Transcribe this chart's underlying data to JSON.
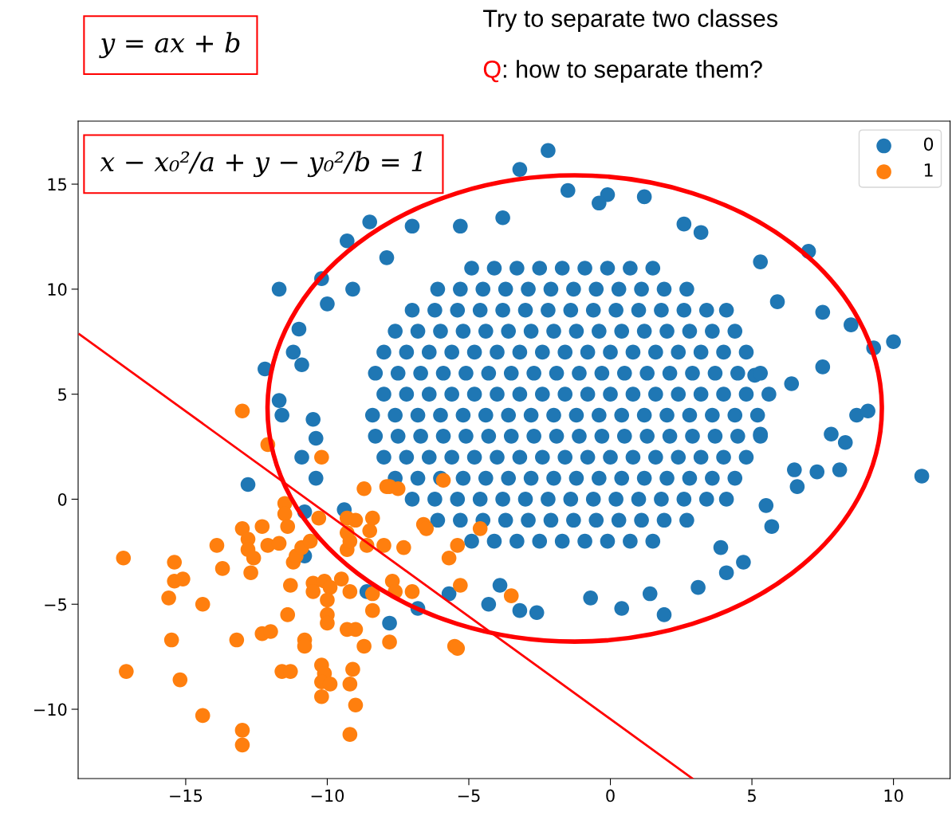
{
  "chart_data": {
    "type": "scatter",
    "annotations": [
      "y = ax + b",
      "x − x₀²/a + y − y₀²/b = 1",
      "Try to separate two classes",
      "Q: how to separate them?"
    ],
    "xlim": [
      -18.8,
      12.0
    ],
    "ylim": [
      -13.3,
      18.0
    ],
    "xticks": [
      {
        "value": -15,
        "label": "−15"
      },
      {
        "value": -10,
        "label": "−10"
      },
      {
        "value": -5,
        "label": "−5"
      },
      0,
      5,
      10
    ],
    "yticks": [
      {
        "value": -10,
        "label": "−10"
      },
      {
        "value": -5,
        "label": "−5"
      },
      0,
      5,
      10,
      15
    ],
    "grid": false,
    "legend": "top right",
    "series": [
      {
        "name": "0",
        "color": "#1f77b4",
        "marker": "circle",
        "x": [
          -12.8,
          -11.7,
          -12.2,
          -11.7,
          -11.6,
          -11.0,
          -11.2,
          -10.2,
          -9.3,
          -8.5,
          -10.8,
          -10.8,
          -10.4,
          -10.9,
          -10.4,
          -10.5,
          -9.4,
          -8.6,
          -7.8,
          -6.8,
          -5.7,
          -4.3,
          -3.2,
          -2.6,
          -3.9,
          -0.7,
          0.4,
          1.9,
          1.4,
          3.1,
          4.1,
          4.7,
          3.9,
          6.5,
          7.3,
          8.1,
          8.3,
          7.8,
          8.7,
          9.1,
          10.0,
          9.3,
          8.5,
          11.0,
          7.0,
          5.3,
          3.2,
          2.6,
          1.2,
          -0.1,
          -1.5,
          -2.2,
          -3.2,
          -0.4,
          -3.8,
          -5.3,
          -7.0,
          -7.9,
          -9.1,
          -10.0,
          5.9,
          7.5,
          7.5,
          6.4,
          5.1,
          5.3,
          6.6,
          5.5,
          5.7,
          -10.9,
          -4.9,
          -4.1,
          -3.3,
          -2.5,
          -1.7,
          -0.9,
          -0.1,
          0.7,
          1.5,
          -6.1,
          -5.3,
          -4.5,
          -3.7,
          -2.9,
          -2.1,
          -1.3,
          -0.5,
          0.3,
          1.1,
          1.9,
          2.7,
          -7.0,
          -6.2,
          -5.4,
          -4.6,
          -3.8,
          -3.0,
          -2.2,
          -1.4,
          -0.6,
          0.2,
          1.0,
          1.8,
          2.6,
          3.4,
          4.1,
          -7.6,
          -6.8,
          -6.0,
          -5.2,
          -4.4,
          -3.6,
          -2.8,
          -2.0,
          -1.2,
          -0.4,
          0.4,
          1.2,
          2.0,
          2.8,
          3.6,
          4.4,
          -8.0,
          -7.2,
          -6.4,
          -5.6,
          -4.8,
          -4.0,
          -3.2,
          -2.4,
          -1.6,
          -0.8,
          0.0,
          0.8,
          1.6,
          2.4,
          3.2,
          4.0,
          4.8,
          -8.3,
          -7.5,
          -6.7,
          -5.9,
          -5.1,
          -4.3,
          -3.5,
          -2.7,
          -1.9,
          -1.1,
          -0.3,
          0.5,
          1.3,
          2.1,
          2.9,
          3.7,
          4.5,
          5.3,
          -8.4,
          -7.6,
          -6.8,
          -6.0,
          -5.2,
          -4.4,
          -3.6,
          -2.8,
          -2.0,
          -1.2,
          -0.4,
          0.4,
          1.2,
          2.0,
          2.8,
          3.6,
          4.4,
          5.2,
          -8.0,
          -7.2,
          -6.4,
          -5.6,
          -4.8,
          -4.0,
          -3.2,
          -2.4,
          -1.6,
          -0.8,
          0.0,
          0.8,
          1.6,
          2.4,
          3.2,
          4.0,
          4.8,
          5.6,
          -8.3,
          -7.5,
          -6.7,
          -5.9,
          -5.1,
          -4.3,
          -3.5,
          -2.7,
          -1.9,
          -1.1,
          -0.3,
          0.5,
          1.3,
          2.1,
          2.9,
          3.7,
          4.5,
          5.3,
          -8.0,
          -7.2,
          -6.4,
          -5.6,
          -4.8,
          -4.0,
          -3.2,
          -2.4,
          -1.6,
          -0.8,
          0.0,
          0.8,
          1.6,
          2.4,
          3.2,
          4.0,
          4.8,
          -7.6,
          -6.8,
          -6.0,
          -5.2,
          -4.4,
          -3.6,
          -2.8,
          -2.0,
          -1.2,
          -0.4,
          0.4,
          1.2,
          2.0,
          2.8,
          3.6,
          4.4,
          -7.0,
          -6.2,
          -5.4,
          -4.6,
          -3.8,
          -3.0,
          -2.2,
          -1.4,
          -0.6,
          0.2,
          1.0,
          1.8,
          2.6,
          3.4,
          4.1,
          -6.1,
          -5.3,
          -4.5,
          -3.7,
          -2.9,
          -2.1,
          -1.3,
          -0.5,
          0.3,
          1.1,
          1.9,
          2.7,
          -4.9,
          -4.1,
          -3.3,
          -2.5,
          -1.7,
          -0.9,
          -0.1,
          0.7,
          1.5
        ],
        "values": [
          0.7,
          10.0,
          6.2,
          4.7,
          4.0,
          8.1,
          7.0,
          10.5,
          12.3,
          13.2,
          -0.6,
          -2.7,
          1.0,
          2.0,
          2.9,
          3.8,
          -0.5,
          -4.4,
          -5.9,
          -5.2,
          -4.5,
          -5.0,
          -5.3,
          -5.4,
          -4.1,
          -4.7,
          -5.2,
          -5.5,
          -4.5,
          -4.2,
          -3.5,
          -3.0,
          -2.3,
          1.4,
          1.3,
          1.4,
          2.7,
          3.1,
          4.0,
          4.2,
          7.5,
          7.2,
          8.3,
          1.1,
          11.8,
          11.3,
          12.7,
          13.1,
          14.4,
          14.5,
          14.7,
          16.6,
          15.7,
          14.1,
          13.4,
          13.0,
          13.0,
          11.5,
          10.0,
          9.3,
          9.4,
          8.9,
          6.3,
          5.5,
          5.9,
          3.1,
          0.6,
          -0.3,
          -1.3,
          6.4,
          -2,
          -2,
          -2,
          -2,
          -2,
          -2,
          -2,
          -2,
          -2,
          -1,
          -1,
          -1,
          -1,
          -1,
          -1,
          -1,
          -1,
          -1,
          -1,
          -1,
          -1,
          0,
          0,
          0,
          0,
          0,
          0,
          0,
          0,
          0,
          0,
          0,
          0,
          0,
          0,
          0,
          1,
          1,
          1,
          1,
          1,
          1,
          1,
          1,
          1,
          1,
          1,
          1,
          1,
          1,
          1,
          1,
          2,
          2,
          2,
          2,
          2,
          2,
          2,
          2,
          2,
          2,
          2,
          2,
          2,
          2,
          2,
          2,
          2,
          3,
          3,
          3,
          3,
          3,
          3,
          3,
          3,
          3,
          3,
          3,
          3,
          3,
          3,
          3,
          3,
          3,
          3,
          4,
          4,
          4,
          4,
          4,
          4,
          4,
          4,
          4,
          4,
          4,
          4,
          4,
          4,
          4,
          4,
          4,
          4,
          5,
          5,
          5,
          5,
          5,
          5,
          5,
          5,
          5,
          5,
          5,
          5,
          5,
          5,
          5,
          5,
          5,
          5,
          6,
          6,
          6,
          6,
          6,
          6,
          6,
          6,
          6,
          6,
          6,
          6,
          6,
          6,
          6,
          6,
          6,
          6,
          7,
          7,
          7,
          7,
          7,
          7,
          7,
          7,
          7,
          7,
          7,
          7,
          7,
          7,
          7,
          7,
          7,
          8,
          8,
          8,
          8,
          8,
          8,
          8,
          8,
          8,
          8,
          8,
          8,
          8,
          8,
          8,
          8,
          9,
          9,
          9,
          9,
          9,
          9,
          9,
          9,
          9,
          9,
          9,
          9,
          9,
          9,
          9,
          10,
          10,
          10,
          10,
          10,
          10,
          10,
          10,
          10,
          10,
          10,
          10,
          11,
          11,
          11,
          11,
          11,
          11,
          11,
          11,
          11
        ]
      },
      {
        "name": "1",
        "color": "#ff7f0e",
        "marker": "circle",
        "x": [
          -17.2,
          -17.1,
          -15.4,
          -15.4,
          -15.6,
          -15.1,
          -15.5,
          -15.2,
          -14.4,
          -14.4,
          -13.9,
          -13.7,
          -13.2,
          -13.0,
          -13.0,
          -13.0,
          -13.0,
          -12.8,
          -12.8,
          -12.6,
          -12.7,
          -12.3,
          -12.1,
          -12.3,
          -12.0,
          -12.1,
          -11.5,
          -11.5,
          -11.7,
          -11.4,
          -11.4,
          -11.6,
          -11.3,
          -11.2,
          -11.1,
          -10.9,
          -10.6,
          -11.3,
          -10.5,
          -10.5,
          -10.8,
          -10.8,
          -10.2,
          -10.3,
          -10.1,
          -9.9,
          -10.0,
          -10.2,
          -10.1,
          -10.2,
          -10.2,
          -10.0,
          -10.0,
          -9.9,
          -9.3,
          -9.2,
          -9.0,
          -9.1,
          -9.2,
          -9.3,
          -9.3,
          -9.3,
          -9.2,
          -9.5,
          -9.0,
          -9.0,
          -8.7,
          -8.6,
          -8.5,
          -8.4,
          -8.7,
          -8.4,
          -8.4,
          -7.9,
          -7.8,
          -7.5,
          -8.0,
          -7.8,
          -7.7,
          -7.3,
          -7.0,
          -6.6,
          -6.5,
          -7.6,
          -5.9,
          -5.7,
          -5.4,
          -5.3,
          -5.5,
          -5.4,
          -4.6,
          -3.5,
          -9.2
        ],
        "values": [
          -2.8,
          -8.2,
          -3.0,
          -3.9,
          -4.7,
          -3.8,
          -6.7,
          -8.6,
          -5.0,
          -10.3,
          -2.2,
          -3.3,
          -6.7,
          -1.4,
          -11.0,
          -11.7,
          4.2,
          -1.9,
          -2.4,
          -2.8,
          -3.5,
          -1.3,
          -2.2,
          -6.4,
          -6.3,
          2.6,
          -0.2,
          -0.7,
          -2.1,
          -1.3,
          -5.5,
          -8.2,
          -8.2,
          -3.0,
          -2.7,
          -2.3,
          -2.0,
          -4.1,
          -4.0,
          -4.4,
          -6.7,
          -7.0,
          2.0,
          -0.9,
          -3.9,
          -4.2,
          -4.8,
          -7.9,
          -8.3,
          -8.7,
          -9.4,
          -5.5,
          -5.9,
          -8.8,
          -6.2,
          -8.8,
          -9.8,
          -8.1,
          -11.2,
          -0.9,
          -1.6,
          -2.4,
          -4.4,
          -3.8,
          -6.2,
          -1.0,
          -7.0,
          -2.2,
          -1.5,
          -0.9,
          0.5,
          -4.5,
          -5.3,
          0.6,
          0.6,
          0.5,
          -2.2,
          -6.8,
          -3.9,
          -2.3,
          -4.4,
          -1.2,
          -1.4,
          -4.4,
          0.9,
          -2.8,
          -2.2,
          -4.1,
          -7.0,
          -7.1,
          -1.4,
          -4.6,
          -2.0
        ]
      },
      {
        "type": "line",
        "color": "#ff0000",
        "marker": "none",
        "x": [
          -18.75,
          2.9
        ],
        "values": [
          7.85,
          -13.3
        ]
      }
    ]
  }
}
